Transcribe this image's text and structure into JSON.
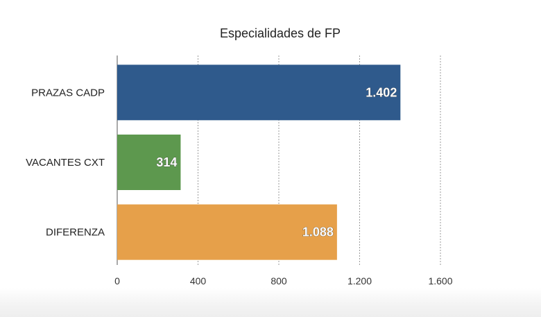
{
  "chart_data": {
    "type": "bar",
    "orientation": "horizontal",
    "title": "Especialidades de FP",
    "categories": [
      "PRAZAS CADP",
      "VACANTES CXT",
      "DIFERENZA"
    ],
    "values": [
      1402,
      314,
      1088
    ],
    "value_labels": [
      "1.402",
      "314",
      "1.088"
    ],
    "colors": [
      "#2f5a8c",
      "#5d984e",
      "#e6a04a"
    ],
    "xlim": [
      0,
      1600
    ],
    "xticks": [
      0,
      400,
      800,
      1200,
      1600
    ],
    "xtick_labels": [
      "0",
      "400",
      "800",
      "1.200",
      "1.600"
    ],
    "grid": "vertical-dashed"
  }
}
